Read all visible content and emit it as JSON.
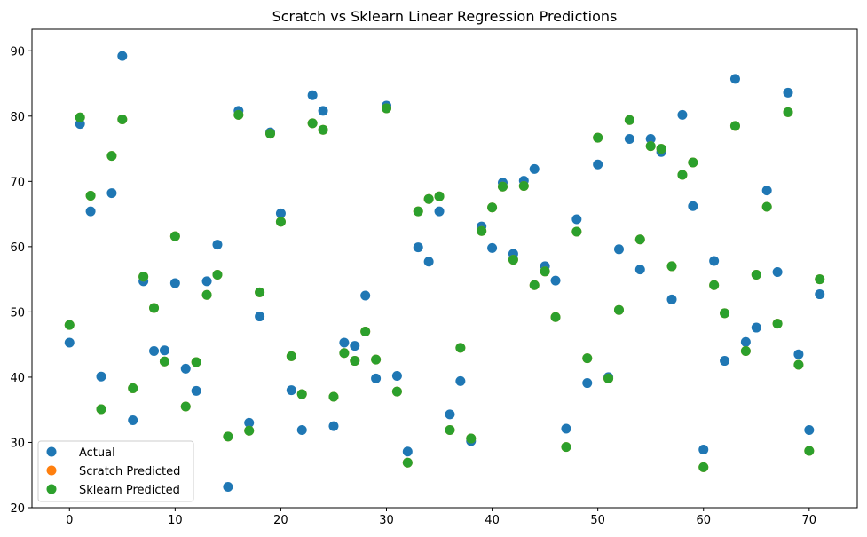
{
  "chart_data": {
    "type": "scatter",
    "title": "Scratch vs Sklearn Linear Regression Predictions",
    "xlabel": "",
    "ylabel": "",
    "xlim": [
      -3.55,
      74.55
    ],
    "ylim": [
      20,
      93.3
    ],
    "xticks": [
      0,
      10,
      20,
      30,
      40,
      50,
      60,
      70
    ],
    "yticks": [
      20,
      30,
      40,
      50,
      60,
      70,
      80,
      90
    ],
    "grid": false,
    "legend": "lower-left",
    "series": [
      {
        "name": "Actual",
        "color": "#1f77b4",
        "x": [
          0,
          1,
          2,
          3,
          4,
          5,
          6,
          7,
          8,
          9,
          10,
          11,
          12,
          13,
          14,
          15,
          16,
          17,
          18,
          19,
          20,
          21,
          22,
          23,
          24,
          25,
          26,
          27,
          28,
          29,
          30,
          31,
          32,
          33,
          34,
          35,
          36,
          37,
          38,
          39,
          40,
          41,
          42,
          43,
          44,
          45,
          46,
          47,
          48,
          49,
          50,
          51,
          52,
          53,
          54,
          55,
          56,
          57,
          58,
          59,
          60,
          61,
          62,
          63,
          64,
          65,
          66,
          67,
          68,
          69,
          70,
          71
        ],
        "y": [
          45.3,
          78.8,
          65.4,
          40.1,
          68.2,
          89.2,
          33.4,
          54.7,
          44.0,
          44.1,
          54.4,
          41.3,
          37.9,
          54.7,
          60.3,
          23.2,
          80.8,
          33.0,
          49.3,
          77.5,
          65.1,
          38.0,
          31.9,
          83.2,
          80.8,
          32.5,
          45.3,
          44.8,
          52.5,
          39.8,
          81.6,
          40.2,
          28.6,
          59.9,
          57.7,
          65.4,
          34.3,
          39.4,
          30.2,
          63.1,
          59.8,
          69.8,
          58.9,
          70.1,
          71.9,
          57.0,
          54.8,
          32.1,
          64.2,
          39.1,
          72.6,
          40.0,
          59.6,
          76.5,
          56.5,
          76.5,
          74.5,
          51.9,
          80.2,
          66.2,
          28.9,
          57.8,
          42.5,
          85.7,
          45.4,
          47.6,
          68.6,
          56.1,
          83.6,
          43.5,
          31.9,
          52.7
        ]
      },
      {
        "name": "Scratch Predicted",
        "color": "#ff7f0e",
        "x": [
          0,
          1,
          2,
          3,
          4,
          5,
          6,
          7,
          8,
          9,
          10,
          11,
          12,
          13,
          14,
          15,
          16,
          17,
          18,
          19,
          20,
          21,
          22,
          23,
          24,
          25,
          26,
          27,
          28,
          29,
          30,
          31,
          32,
          33,
          34,
          35,
          36,
          37,
          38,
          39,
          40,
          41,
          42,
          43,
          44,
          45,
          46,
          47,
          48,
          49,
          50,
          51,
          52,
          53,
          54,
          55,
          56,
          57,
          58,
          59,
          60,
          61,
          62,
          63,
          64,
          65,
          66,
          67,
          68,
          69,
          70,
          71
        ],
        "y": [
          48.0,
          79.8,
          67.8,
          35.1,
          73.9,
          79.5,
          38.3,
          55.4,
          50.6,
          42.4,
          61.6,
          35.5,
          42.3,
          52.6,
          55.7,
          30.9,
          80.2,
          31.8,
          53.0,
          77.3,
          63.8,
          43.2,
          37.4,
          78.9,
          77.9,
          37.0,
          43.7,
          42.5,
          47.0,
          42.7,
          81.2,
          37.8,
          26.9,
          65.4,
          67.3,
          67.7,
          31.9,
          44.5,
          30.6,
          62.4,
          66.0,
          69.2,
          58.0,
          69.3,
          54.1,
          56.2,
          49.2,
          29.3,
          62.3,
          42.9,
          76.7,
          39.8,
          50.3,
          79.4,
          61.1,
          75.4,
          75.0,
          57.0,
          71.0,
          72.9,
          26.2,
          54.1,
          49.8,
          78.5,
          44.0,
          55.7,
          66.1,
          48.2,
          80.6,
          41.9,
          28.7,
          55.0
        ]
      },
      {
        "name": "Sklearn Predicted",
        "color": "#2ca02c",
        "x": [
          0,
          1,
          2,
          3,
          4,
          5,
          6,
          7,
          8,
          9,
          10,
          11,
          12,
          13,
          14,
          15,
          16,
          17,
          18,
          19,
          20,
          21,
          22,
          23,
          24,
          25,
          26,
          27,
          28,
          29,
          30,
          31,
          32,
          33,
          34,
          35,
          36,
          37,
          38,
          39,
          40,
          41,
          42,
          43,
          44,
          45,
          46,
          47,
          48,
          49,
          50,
          51,
          52,
          53,
          54,
          55,
          56,
          57,
          58,
          59,
          60,
          61,
          62,
          63,
          64,
          65,
          66,
          67,
          68,
          69,
          70,
          71
        ],
        "y": [
          48.0,
          79.8,
          67.8,
          35.1,
          73.9,
          79.5,
          38.3,
          55.4,
          50.6,
          42.4,
          61.6,
          35.5,
          42.3,
          52.6,
          55.7,
          30.9,
          80.2,
          31.8,
          53.0,
          77.3,
          63.8,
          43.2,
          37.4,
          78.9,
          77.9,
          37.0,
          43.7,
          42.5,
          47.0,
          42.7,
          81.2,
          37.8,
          26.9,
          65.4,
          67.3,
          67.7,
          31.9,
          44.5,
          30.6,
          62.4,
          66.0,
          69.2,
          58.0,
          69.3,
          54.1,
          56.2,
          49.2,
          29.3,
          62.3,
          42.9,
          76.7,
          39.8,
          50.3,
          79.4,
          61.1,
          75.4,
          75.0,
          57.0,
          71.0,
          72.9,
          26.2,
          54.1,
          49.8,
          78.5,
          44.0,
          55.7,
          66.1,
          48.2,
          80.6,
          41.9,
          28.7,
          55.0
        ]
      }
    ]
  }
}
